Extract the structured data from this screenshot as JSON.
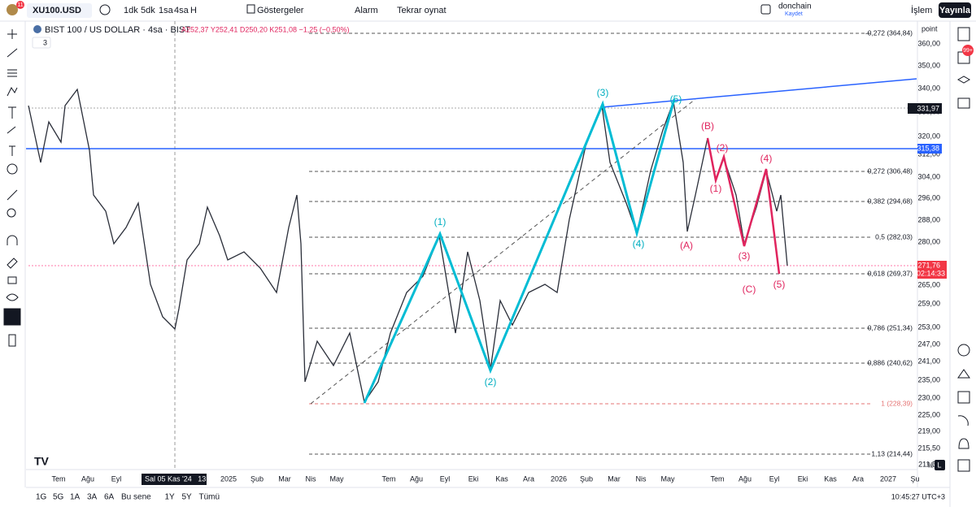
{
  "toolbar": {
    "symbol": "XU100.USD",
    "intervals": [
      "1dk",
      "5dk",
      "1sa",
      "4sa",
      "H"
    ],
    "indicators": "Göstergeler",
    "alarm": "Alarm",
    "replay": "Tekrar oynat",
    "user": "donchain",
    "saved": "Kaydet",
    "trade": "İşlem",
    "publish": "Yayınla",
    "badge": "11",
    "notifications": "99+"
  },
  "legend": {
    "title": "BIST 100 / US DOLLAR · 4sa · BIST",
    "ohlc": "A252,37 Y252,41 D250,20 K251,08 −1,25 (−0,50%)",
    "count": "3"
  },
  "price_axis": {
    "unit": "point",
    "labels": [
      "360,00",
      "350,00",
      "340,00",
      "330,00",
      "320,00",
      "312,00",
      "304,00",
      "296,00",
      "288,00",
      "280,00",
      "265,00",
      "259,00",
      "253,00",
      "247,00",
      "241,00",
      "235,00",
      "230,00",
      "225,00",
      "219,00",
      "215,50",
      "211,50"
    ]
  },
  "price_tags": {
    "crosshair": "331,97",
    "line": "315,38",
    "last": "271,76",
    "countdown": "02:14:33"
  },
  "fib_levels": [
    "-0,272 (364,84)",
    "0,272 (306,48)",
    "0,382 (294,68)",
    "0,5 (282,03)",
    "0,618 (269,37)",
    "0,786 (251,34)",
    "0,886 (240,62)",
    "1 (228,39)",
    "1,13 (214,44)"
  ],
  "waves": {
    "impulse": [
      "(1)",
      "(2)",
      "(3)",
      "(4)",
      "(5)"
    ],
    "correction": [
      "(A)",
      "(B)",
      "(C)"
    ],
    "sub": [
      "(1)",
      "(2)",
      "(3)",
      "(4)",
      "(5)"
    ]
  },
  "time_axis": {
    "labels": [
      "Tem",
      "Ağu",
      "Eyl",
      "2025",
      "Şub",
      "Mar",
      "Nis",
      "May",
      "Tem",
      "Ağu",
      "Eyl",
      "Eki",
      "Kas",
      "Ara",
      "2026",
      "Şub",
      "Mar",
      "Nis",
      "May",
      "Tem",
      "Ağu",
      "Eyl",
      "Eki",
      "Kas",
      "Ara",
      "2027",
      "Şu"
    ],
    "crosshair": "Sal 05 Kas '24   13:00"
  },
  "bottom_bar": {
    "ranges": [
      "1G",
      "5G",
      "1A",
      "3A",
      "6A",
      "Bu sene",
      "1Y",
      "5Y",
      "Tümü"
    ],
    "clock": "10:45:27 UTC+3",
    "percent": "%",
    "log": "L"
  }
}
